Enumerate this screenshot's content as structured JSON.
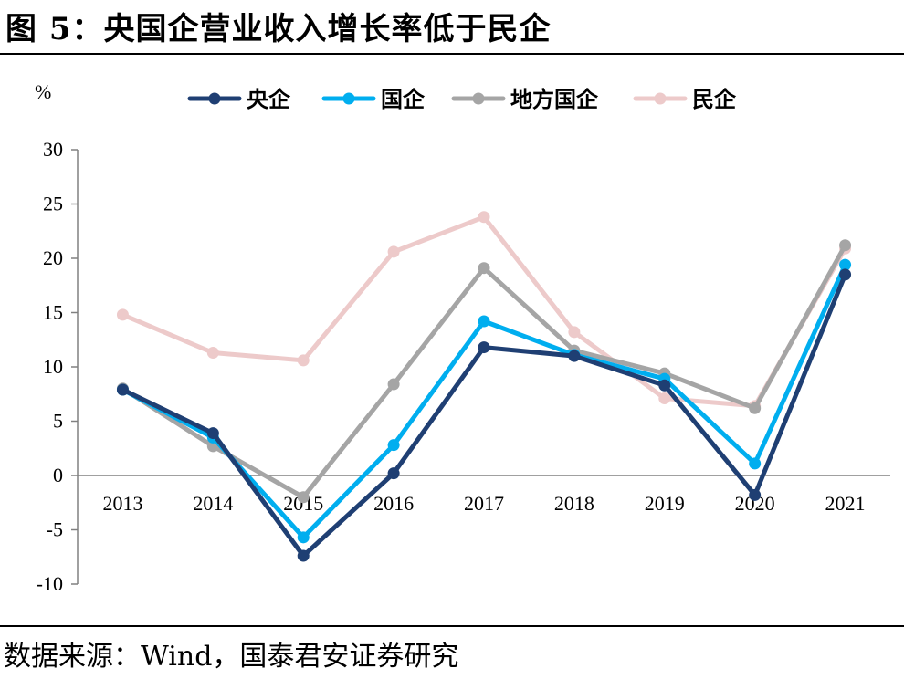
{
  "header": {
    "title": "图 5：央国企营业收入增长率低于民企"
  },
  "footer": {
    "source": "数据来源：Wind，国泰君安证券研究"
  },
  "chart_data": {
    "type": "line",
    "title": "",
    "xlabel": "",
    "ylabel": "%",
    "ylim": [
      -10,
      30
    ],
    "yticks": [
      -10,
      -5,
      0,
      5,
      10,
      15,
      20,
      25,
      30
    ],
    "categories": [
      "2013",
      "2014",
      "2015",
      "2016",
      "2017",
      "2018",
      "2019",
      "2020",
      "2021"
    ],
    "legend_position": "top",
    "grid": false,
    "series": [
      {
        "name": "央企",
        "color": "#1F3F73",
        "values": [
          7.9,
          3.9,
          -7.4,
          0.2,
          11.8,
          11.0,
          8.3,
          -1.8,
          18.5
        ]
      },
      {
        "name": "国企",
        "color": "#00AEEF",
        "values": [
          7.9,
          3.5,
          -5.7,
          2.8,
          14.2,
          11.1,
          8.9,
          1.1,
          19.4
        ]
      },
      {
        "name": "地方国企",
        "color": "#A5A5A5",
        "values": [
          8.0,
          2.7,
          -2.0,
          8.4,
          19.1,
          11.5,
          9.4,
          6.2,
          21.2
        ]
      },
      {
        "name": "民企",
        "color": "#EDCACA",
        "values": [
          14.8,
          11.3,
          10.6,
          20.6,
          23.8,
          13.2,
          7.1,
          6.4,
          20.9
        ]
      }
    ]
  }
}
